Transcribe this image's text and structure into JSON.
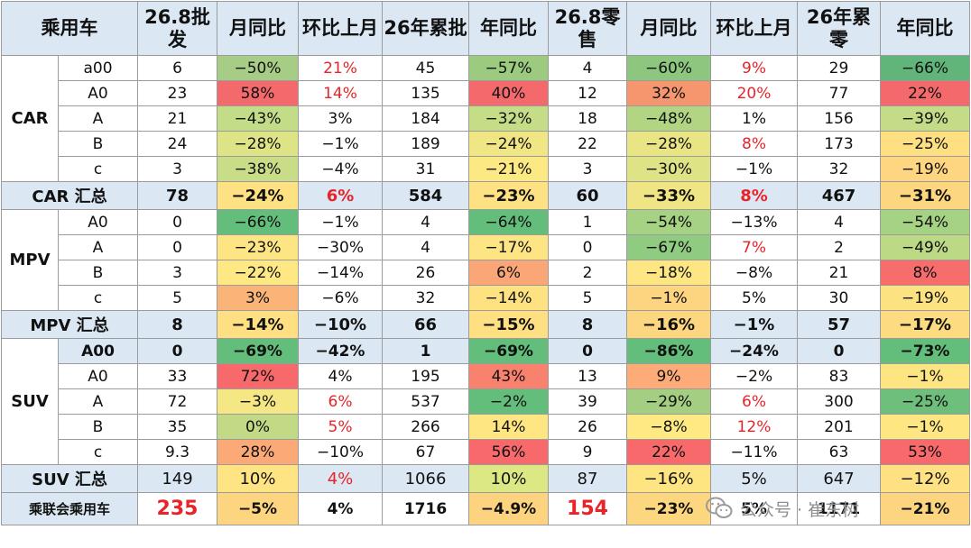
{
  "headers": [
    "乘用车",
    "26.8批发",
    "月同比",
    "环比上月",
    "26年累批",
    "年同比",
    "26.8零售",
    "月同比",
    "环比上月",
    "26年累零",
    "年同比"
  ],
  "colors": {
    "header_bg": "#dbe8f4",
    "red_text": "#e8242a",
    "border": "#9b9b9b"
  },
  "groups": [
    {
      "label": "CAR",
      "subtotal_label": "CAR 汇总",
      "rows": [
        {
          "sub": "a00",
          "cells": [
            "6",
            "-50%",
            "21%",
            "45",
            "-57%",
            "4",
            "-60%",
            "9%",
            "29",
            "-66%"
          ]
        },
        {
          "sub": "A0",
          "cells": [
            "23",
            "58%",
            "14%",
            "135",
            "40%",
            "12",
            "32%",
            "20%",
            "77",
            "22%"
          ]
        },
        {
          "sub": "A",
          "cells": [
            "21",
            "-43%",
            "3%",
            "184",
            "-32%",
            "18",
            "-48%",
            "1%",
            "156",
            "-39%"
          ]
        },
        {
          "sub": "B",
          "cells": [
            "24",
            "-28%",
            "-1%",
            "189",
            "-24%",
            "22",
            "-28%",
            "8%",
            "173",
            "-25%"
          ]
        },
        {
          "sub": "c",
          "cells": [
            "3",
            "-38%",
            "-4%",
            "31",
            "-21%",
            "3",
            "-30%",
            "-1%",
            "32",
            "-19%"
          ]
        }
      ],
      "subtotal": [
        "78",
        "-24%",
        "6%",
        "584",
        "-23%",
        "60",
        "-33%",
        "8%",
        "467",
        "-31%"
      ]
    },
    {
      "label": "MPV",
      "subtotal_label": "MPV 汇总",
      "rows": [
        {
          "sub": "A0",
          "cells": [
            "0",
            "-66%",
            "-1%",
            "4",
            "-64%",
            "1",
            "-54%",
            "-13%",
            "4",
            "-54%"
          ]
        },
        {
          "sub": "A",
          "cells": [
            "0",
            "-23%",
            "-30%",
            "4",
            "-17%",
            "0",
            "-67%",
            "7%",
            "2",
            "-49%"
          ]
        },
        {
          "sub": "B",
          "cells": [
            "3",
            "-22%",
            "-14%",
            "26",
            "6%",
            "2",
            "-18%",
            "-8%",
            "21",
            "8%"
          ]
        },
        {
          "sub": "c",
          "cells": [
            "5",
            "3%",
            "-6%",
            "32",
            "-14%",
            "5",
            "-1%",
            "5%",
            "30",
            "-19%"
          ]
        }
      ],
      "subtotal": [
        "8",
        "-14%",
        "-10%",
        "66",
        "-15%",
        "8",
        "-16%",
        "-1%",
        "57",
        "-17%"
      ]
    },
    {
      "label": "SUV",
      "subtotal_label": "SUV 汇总",
      "rows": [
        {
          "sub": "A00",
          "cells": [
            "0",
            "-69%",
            "-42%",
            "1",
            "-69%",
            "0",
            "-86%",
            "-24%",
            "0",
            "-73%"
          ]
        },
        {
          "sub": "A0",
          "cells": [
            "33",
            "72%",
            "4%",
            "195",
            "43%",
            "13",
            "9%",
            "-2%",
            "83",
            "-1%"
          ]
        },
        {
          "sub": "A",
          "cells": [
            "72",
            "-3%",
            "6%",
            "537",
            "-2%",
            "39",
            "-29%",
            "6%",
            "300",
            "-25%"
          ]
        },
        {
          "sub": "B",
          "cells": [
            "35",
            "0%",
            "5%",
            "266",
            "14%",
            "26",
            "-8%",
            "12%",
            "201",
            "-1%"
          ]
        },
        {
          "sub": "c",
          "cells": [
            "9.3",
            "28%",
            "-10%",
            "67",
            "56%",
            "9",
            "22%",
            "-11%",
            "63",
            "53%"
          ]
        }
      ],
      "subtotal": [
        "149",
        "10%",
        "4%",
        "1066",
        "10%",
        "87",
        "-16%",
        "5%",
        "647",
        "-12%"
      ]
    }
  ],
  "total": {
    "label": "乘联会乘用车",
    "cells": [
      "235",
      "-5%",
      "4%",
      "1716",
      "-4.9%",
      "154",
      "-23%",
      "5%",
      "1171",
      "-21%"
    ]
  },
  "watermark": {
    "text": "公众号 · 崔东树"
  }
}
